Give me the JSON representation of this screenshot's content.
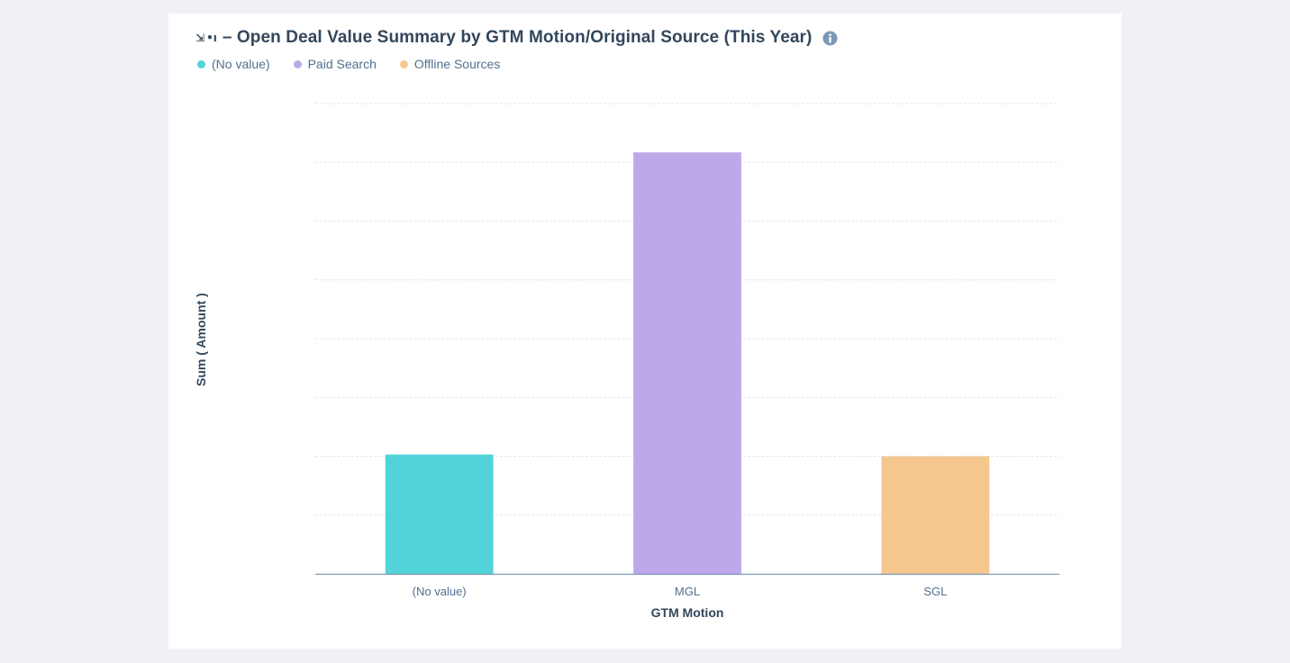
{
  "header": {
    "prefix_glyphs": [
      "⇲",
      "•ı"
    ],
    "title": "– Open Deal Value Summary by GTM Motion/Original Source (This Year)",
    "info_icon": "info-icon"
  },
  "colors": {
    "no_value": "#51d3d9",
    "paid_search": "#bda9ea",
    "offline_sources": "#f5c78e",
    "gridline": "#dfe3eb",
    "axis": "#7c98b6"
  },
  "chart_data": {
    "type": "bar",
    "title": "– Open Deal Value Summary by GTM Motion/Original Source (This Year)",
    "xlabel": "GTM Motion",
    "ylabel": "Sum ( Amount )",
    "categories": [
      "(No value)",
      "MGL",
      "SGL"
    ],
    "series": [
      {
        "name": "(No value)",
        "color": "#51d3d9",
        "values": [
          2.03,
          0,
          0
        ]
      },
      {
        "name": "Paid Search",
        "color": "#bda9ea",
        "values": [
          0,
          7.17,
          0
        ]
      },
      {
        "name": "Offline Sources",
        "color": "#f5c78e",
        "values": [
          0,
          0,
          2.0
        ]
      }
    ],
    "ylim": [
      0,
      8
    ],
    "grid": true,
    "legend_position": "top-left"
  }
}
